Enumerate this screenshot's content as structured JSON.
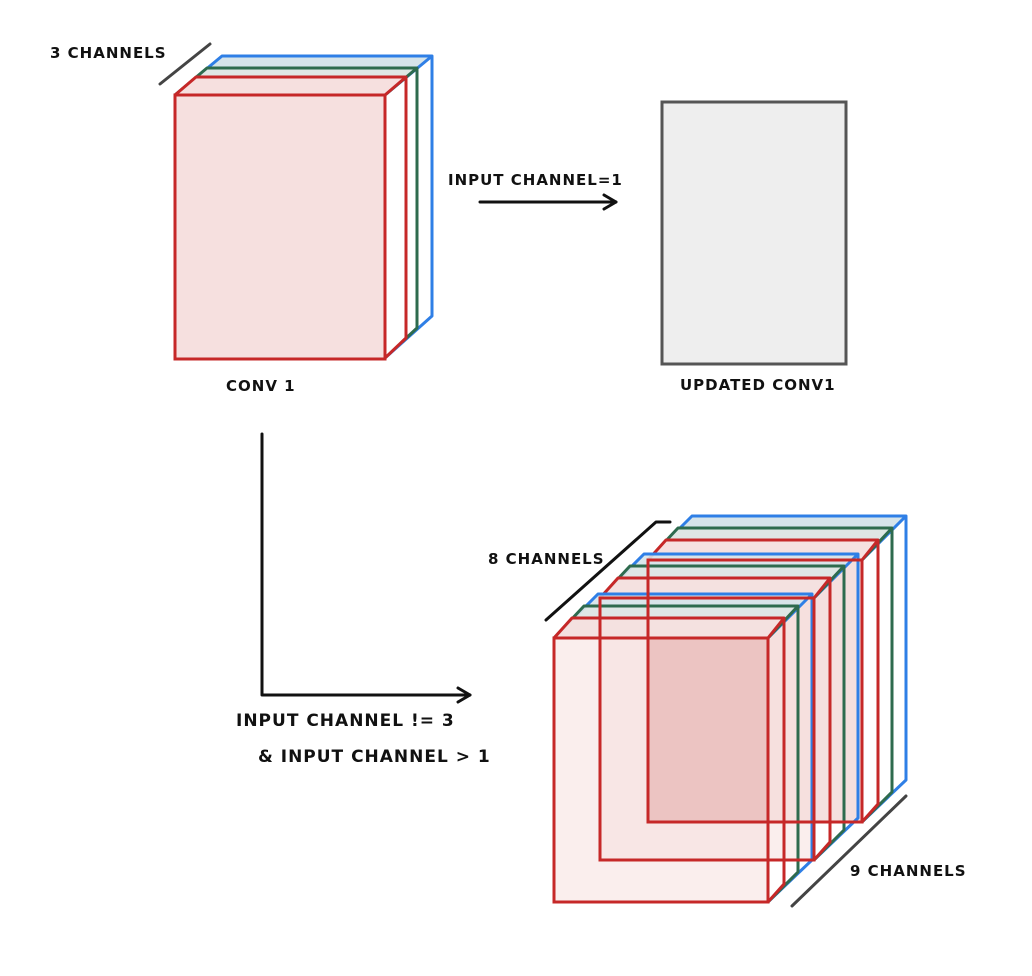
{
  "labels": {
    "top_channels": "3 CHANNELS",
    "arrow_right": "INPUT CHANNEL=1",
    "conv1": "CONV 1",
    "updated_conv1": "UPDATED CONV1",
    "mid_channels": "8 CHANNELS",
    "bottom_line1": "INPUT CHANNEL != 3",
    "bottom_line2": "& INPUT CHANNEL > 1",
    "right_channels": "9 CHANNELS"
  },
  "colors": {
    "red": "#c62828",
    "red_fill": "#f6e0df",
    "red_fill_dark": "#e8b8b6",
    "green": "#2e6b4e",
    "blue": "#2f7fe6",
    "blue_fill": "#d6e4ea",
    "gray": "#555555",
    "gray_fill": "#eeeeee",
    "ink": "#111111"
  }
}
